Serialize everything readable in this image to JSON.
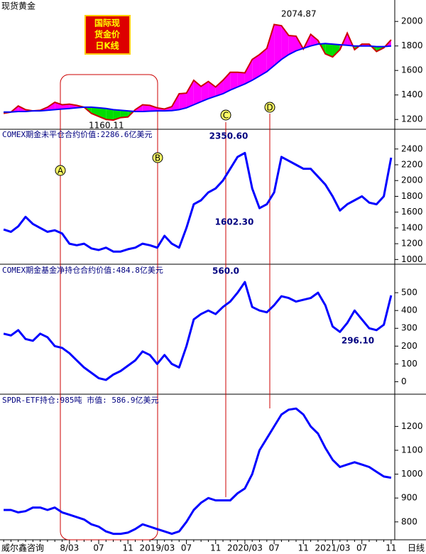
{
  "markers": [
    "A",
    "B",
    "C",
    "D"
  ],
  "chart_data": [
    {
      "type": "line",
      "title": "现货黄金",
      "badge": [
        "国际现",
        "货金价",
        "日K线"
      ],
      "annotations": [
        "2074.87",
        "1160.11"
      ],
      "ylim": [
        1120,
        2175
      ],
      "yticks": [
        1200,
        1400,
        1600,
        1800,
        2000
      ],
      "fill_between": {
        "above": "#ff00ff",
        "below": "#00dd00"
      },
      "series": [
        {
          "color": "#cc0000",
          "values": [
            1250,
            1260,
            1310,
            1280,
            1270,
            1275,
            1300,
            1340,
            1320,
            1325,
            1315,
            1300,
            1250,
            1225,
            1200,
            1195,
            1215,
            1220,
            1280,
            1320,
            1315,
            1295,
            1285,
            1305,
            1410,
            1415,
            1520,
            1470,
            1510,
            1465,
            1520,
            1585,
            1585,
            1580,
            1690,
            1730,
            1780,
            1975,
            1965,
            1885,
            1880,
            1775,
            1895,
            1845,
            1735,
            1710,
            1770,
            1905,
            1770,
            1815,
            1815,
            1755,
            1785,
            1850
          ]
        },
        {
          "color": "#0000ff",
          "values": [
            1260,
            1260,
            1265,
            1265,
            1270,
            1270,
            1275,
            1280,
            1285,
            1290,
            1295,
            1300,
            1300,
            1295,
            1290,
            1280,
            1275,
            1270,
            1265,
            1265,
            1268,
            1270,
            1270,
            1272,
            1280,
            1295,
            1320,
            1345,
            1370,
            1390,
            1410,
            1440,
            1465,
            1490,
            1520,
            1555,
            1590,
            1640,
            1690,
            1730,
            1760,
            1780,
            1800,
            1815,
            1820,
            1815,
            1810,
            1805,
            1800,
            1800,
            1800,
            1795,
            1795,
            1800
          ]
        }
      ]
    },
    {
      "type": "line",
      "title": "COMEX期金未平仓合约价值:2286.6亿美元",
      "annotations": [
        "2350.60",
        "1602.30"
      ],
      "ylim": [
        940,
        2650
      ],
      "yticks": [
        1000,
        1200,
        1400,
        1600,
        1800,
        2000,
        2200,
        2400
      ],
      "color": "#0000ff",
      "values": [
        1380,
        1350,
        1420,
        1540,
        1450,
        1400,
        1350,
        1370,
        1330,
        1200,
        1180,
        1200,
        1140,
        1120,
        1150,
        1100,
        1100,
        1130,
        1150,
        1200,
        1180,
        1150,
        1300,
        1200,
        1150,
        1400,
        1700,
        1750,
        1850,
        1900,
        2000,
        2150,
        2300,
        2350,
        1900,
        1650,
        1700,
        1850,
        2300,
        2250,
        2200,
        2150,
        2150,
        2050,
        1950,
        1800,
        1620,
        1700,
        1750,
        1800,
        1720,
        1700,
        1800,
        2290
      ]
    },
    {
      "type": "line",
      "title": "COMEX期金基金净持仓合约价值:484.8亿美元",
      "annotations": [
        "560.0",
        "296.10"
      ],
      "ylim": [
        -70,
        660
      ],
      "yticks": [
        0,
        100,
        200,
        300,
        400,
        500
      ],
      "color": "#0000ff",
      "values": [
        270,
        260,
        290,
        240,
        230,
        270,
        250,
        200,
        190,
        160,
        120,
        80,
        50,
        20,
        10,
        40,
        60,
        90,
        120,
        170,
        150,
        100,
        150,
        100,
        80,
        200,
        350,
        380,
        400,
        380,
        420,
        450,
        500,
        560,
        420,
        400,
        390,
        430,
        480,
        470,
        450,
        460,
        470,
        500,
        430,
        310,
        280,
        330,
        400,
        350,
        300,
        290,
        320,
        485
      ]
    },
    {
      "type": "line",
      "title": "SPDR-ETF持仓:985吨  市值: 586.9亿美元",
      "source": "威尔鑫咨询",
      "x_unit_label": "日线",
      "ylim": [
        725,
        1335
      ],
      "yticks": [
        800,
        900,
        1000,
        1100,
        1200
      ],
      "color": "#0000ff",
      "categories": [
        null,
        null,
        null,
        null,
        null,
        null,
        null,
        null,
        null,
        "8/03",
        null,
        null,
        null,
        "07",
        null,
        null,
        null,
        "11",
        null,
        null,
        null,
        "2019/03",
        null,
        null,
        null,
        "07",
        null,
        null,
        null,
        "11",
        null,
        null,
        null,
        "2020/03",
        null,
        null,
        null,
        "07",
        null,
        null,
        null,
        "11",
        null,
        null,
        null,
        "2021/03",
        null,
        null,
        null,
        "07",
        null,
        null,
        null,
        "11"
      ],
      "values": [
        850,
        850,
        840,
        845,
        860,
        860,
        850,
        860,
        840,
        830,
        820,
        810,
        790,
        780,
        760,
        750,
        750,
        755,
        770,
        790,
        780,
        770,
        760,
        750,
        760,
        800,
        850,
        880,
        900,
        890,
        890,
        890,
        920,
        940,
        1000,
        1100,
        1150,
        1200,
        1250,
        1270,
        1275,
        1250,
        1200,
        1170,
        1110,
        1060,
        1030,
        1040,
        1050,
        1040,
        1030,
        1010,
        990,
        985
      ]
    }
  ]
}
